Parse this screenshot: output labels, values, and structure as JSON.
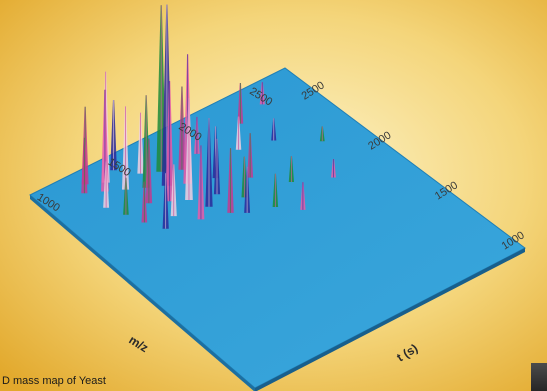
{
  "caption": "D mass map of Yeast",
  "chart_data": {
    "type": "surface3d",
    "title": "",
    "axes": {
      "mz": {
        "label": "m/z",
        "ticks": [
          1000,
          1500,
          2000,
          2500
        ],
        "range": [
          800,
          2600
        ]
      },
      "time": {
        "label": "t (s)",
        "ticks": [
          1000,
          1500,
          2000,
          2500
        ],
        "range": [
          800,
          2600
        ]
      }
    },
    "surface_color": "#2f9fd6",
    "peak_colors": [
      "#e85aa8",
      "#c43a8e",
      "#2a2a9a",
      "#1f8a3a",
      "#f0d0e0"
    ],
    "peaks": [
      {
        "mz": 1050,
        "t": 2450,
        "h": 0.3
      },
      {
        "mz": 1070,
        "t": 2300,
        "h": 0.25
      },
      {
        "mz": 1100,
        "t": 2500,
        "h": 0.42
      },
      {
        "mz": 1120,
        "t": 2200,
        "h": 0.2
      },
      {
        "mz": 1150,
        "t": 2400,
        "h": 0.55
      },
      {
        "mz": 1160,
        "t": 2100,
        "h": 0.22
      },
      {
        "mz": 1200,
        "t": 2450,
        "h": 0.6
      },
      {
        "mz": 1220,
        "t": 2000,
        "h": 0.3
      },
      {
        "mz": 1250,
        "t": 2350,
        "h": 0.45
      },
      {
        "mz": 1280,
        "t": 2200,
        "h": 0.35
      },
      {
        "mz": 1300,
        "t": 2500,
        "h": 0.38
      },
      {
        "mz": 1320,
        "t": 2050,
        "h": 0.28
      },
      {
        "mz": 1350,
        "t": 2300,
        "h": 0.5
      },
      {
        "mz": 1380,
        "t": 2150,
        "h": 0.65
      },
      {
        "mz": 1400,
        "t": 2400,
        "h": 0.33
      },
      {
        "mz": 1420,
        "t": 1950,
        "h": 0.4
      },
      {
        "mz": 1450,
        "t": 2250,
        "h": 0.98
      },
      {
        "mz": 1470,
        "t": 2100,
        "h": 0.55
      },
      {
        "mz": 1500,
        "t": 2350,
        "h": 0.9
      },
      {
        "mz": 1520,
        "t": 2000,
        "h": 0.48
      },
      {
        "mz": 1550,
        "t": 2200,
        "h": 0.7
      },
      {
        "mz": 1580,
        "t": 1900,
        "h": 0.35
      },
      {
        "mz": 1600,
        "t": 2300,
        "h": 0.45
      },
      {
        "mz": 1620,
        "t": 2050,
        "h": 0.3
      },
      {
        "mz": 1650,
        "t": 1850,
        "h": 0.25
      },
      {
        "mz": 1700,
        "t": 2150,
        "h": 0.28
      },
      {
        "mz": 1720,
        "t": 1950,
        "h": 0.22
      },
      {
        "mz": 1750,
        "t": 2350,
        "h": 0.2
      },
      {
        "mz": 1800,
        "t": 1800,
        "h": 0.18
      },
      {
        "mz": 1850,
        "t": 2050,
        "h": 0.24
      },
      {
        "mz": 1900,
        "t": 1700,
        "h": 0.15
      },
      {
        "mz": 1950,
        "t": 2250,
        "h": 0.18
      },
      {
        "mz": 2000,
        "t": 1900,
        "h": 0.14
      },
      {
        "mz": 2100,
        "t": 2400,
        "h": 0.22
      },
      {
        "mz": 2150,
        "t": 2200,
        "h": 0.12
      },
      {
        "mz": 2200,
        "t": 1800,
        "h": 0.1
      },
      {
        "mz": 2300,
        "t": 2450,
        "h": 0.12
      },
      {
        "mz": 2350,
        "t": 2050,
        "h": 0.08
      }
    ]
  }
}
